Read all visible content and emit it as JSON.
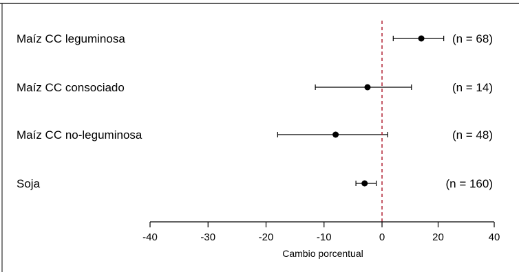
{
  "chart_data": {
    "type": "forest",
    "title": "",
    "xlabel": "Cambio porcentual",
    "ylabel": "",
    "xlim": [
      -40,
      40
    ],
    "xticks": [
      -40,
      -30,
      -20,
      -10,
      0,
      20,
      40
    ],
    "reference_line": 0,
    "reference_color": "#b22234",
    "grid": false,
    "rows": [
      {
        "label": "Maíz CC leguminosa",
        "estimate": 14,
        "ci_low": 4,
        "ci_high": 22,
        "n_label": "(n = 68)"
      },
      {
        "label": "Maíz CC consociado",
        "estimate": -2.5,
        "ci_low": -11.5,
        "ci_high": 10.5,
        "n_label": "(n = 14)"
      },
      {
        "label": "Maíz CC no-leguminosa",
        "estimate": -8,
        "ci_low": -18,
        "ci_high": 2,
        "n_label": "(n = 48)"
      },
      {
        "label": "Soja",
        "estimate": -3,
        "ci_low": -4.5,
        "ci_high": -1,
        "n_label": "(n = 160)"
      }
    ]
  }
}
